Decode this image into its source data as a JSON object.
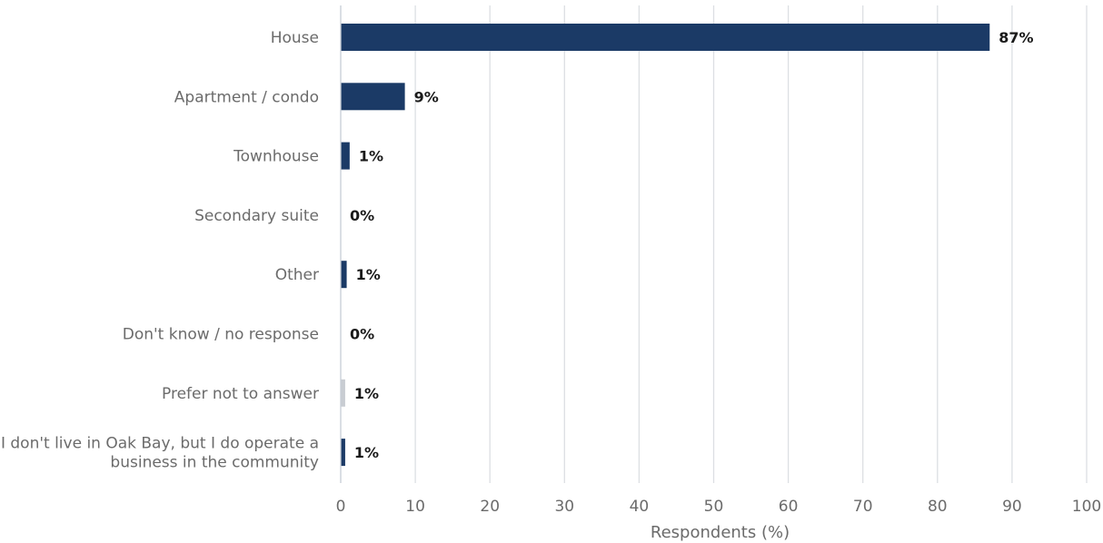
{
  "chart_data": {
    "type": "bar",
    "orientation": "horizontal",
    "title": "",
    "xlabel": "Respondents (%)",
    "ylabel": "",
    "xlim": [
      0,
      100
    ],
    "x_ticks": [
      0,
      10,
      20,
      30,
      40,
      50,
      60,
      70,
      80,
      90,
      100
    ],
    "grid": true,
    "categories": [
      [
        "House"
      ],
      [
        "Apartment / condo"
      ],
      [
        "Townhouse"
      ],
      [
        "Secondary suite"
      ],
      [
        "Other"
      ],
      [
        "Don't know / no response"
      ],
      [
        "Prefer not to answer"
      ],
      [
        "I don't live in Oak Bay, but I do operate a",
        "business in the community"
      ]
    ],
    "values": [
      87,
      9,
      1,
      0,
      1,
      0,
      1,
      1
    ],
    "data_labels": [
      "87%",
      "9%",
      "1%",
      "0%",
      "1%",
      "0%",
      "1%",
      "1%"
    ],
    "bar_colors": [
      "#1b3a66",
      "#1b3a66",
      "#1b3a66",
      "#1b3a66",
      "#1b3a66",
      "#1b3a66",
      "#c8ccd2",
      "#1b3a66"
    ],
    "display_widths": [
      87,
      8.6,
      1.2,
      0,
      0.8,
      0,
      0.6,
      0.6
    ]
  }
}
